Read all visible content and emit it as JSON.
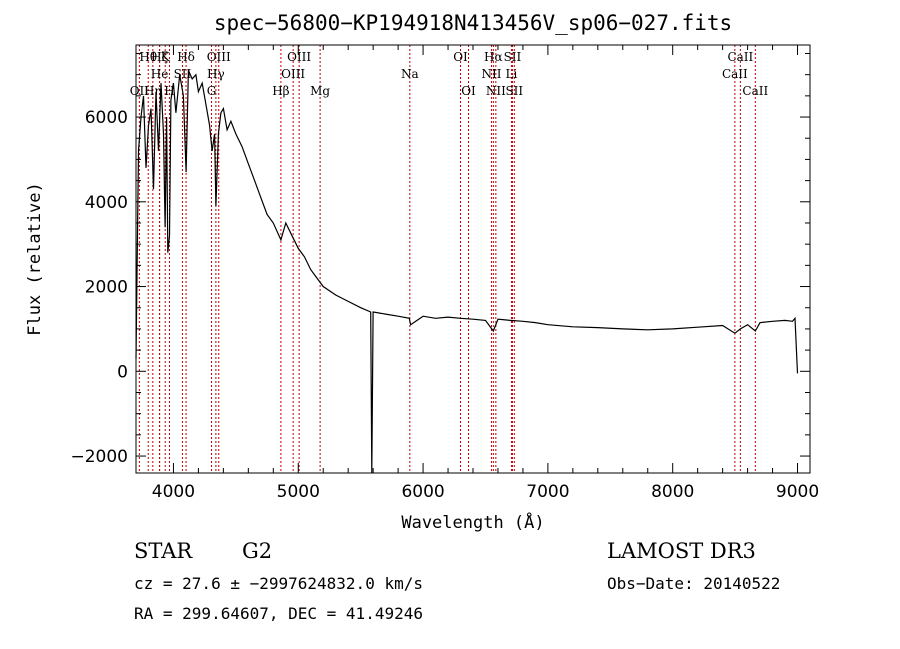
{
  "chart_data": {
    "type": "line",
    "title": "spec−56800−KP194918N413456V_sp06−027.fits",
    "xlabel": "Wavelength (Å)",
    "ylabel": "Flux (relative)",
    "xlim": [
      3700,
      9100
    ],
    "ylim": [
      -2400,
      7700
    ],
    "x_ticks": [
      4000,
      5000,
      6000,
      7000,
      8000,
      9000
    ],
    "y_ticks": [
      -2000,
      0,
      2000,
      4000,
      6000
    ],
    "series": [
      {
        "name": "flux",
        "x": [
          3700,
          3720,
          3740,
          3760,
          3780,
          3800,
          3820,
          3840,
          3860,
          3880,
          3900,
          3920,
          3933,
          3945,
          3955,
          3968,
          3980,
          4000,
          4020,
          4050,
          4080,
          4101,
          4120,
          4150,
          4180,
          4200,
          4230,
          4260,
          4290,
          4310,
          4330,
          4340,
          4360,
          4380,
          4400,
          4430,
          4460,
          4500,
          4550,
          4600,
          4650,
          4700,
          4750,
          4800,
          4861,
          4900,
          4950,
          5000,
          5050,
          5100,
          5150,
          5200,
          5300,
          5400,
          5500,
          5580,
          5589,
          5600,
          5700,
          5800,
          5890,
          5900,
          6000,
          6100,
          6200,
          6300,
          6400,
          6500,
          6563,
          6600,
          6700,
          6800,
          6900,
          7000,
          7200,
          7400,
          7600,
          7800,
          8000,
          8200,
          8400,
          8498,
          8542,
          8600,
          8662,
          8700,
          8800,
          8900,
          8960,
          8980,
          9000
        ],
        "y": [
          300,
          5200,
          6000,
          6500,
          4800,
          5800,
          6200,
          4300,
          6600,
          5200,
          6800,
          5600,
          3400,
          6000,
          2800,
          3200,
          6400,
          6800,
          6100,
          7000,
          6500,
          4700,
          7100,
          6900,
          7000,
          6600,
          6800,
          6300,
          5800,
          5200,
          5600,
          3900,
          5600,
          6100,
          6200,
          5700,
          5900,
          5600,
          5300,
          4900,
          4500,
          4100,
          3700,
          3500,
          3100,
          3500,
          3200,
          2900,
          2700,
          2400,
          2200,
          2000,
          1800,
          1650,
          1500,
          1400,
          -2500,
          1400,
          1350,
          1300,
          1250,
          1100,
          1300,
          1250,
          1280,
          1250,
          1230,
          1200,
          950,
          1230,
          1200,
          1180,
          1150,
          1100,
          1050,
          1030,
          1000,
          980,
          1000,
          1040,
          1080,
          900,
          1000,
          1100,
          950,
          1150,
          1180,
          1200,
          1180,
          1250,
          -50
        ]
      }
    ],
    "lines": [
      {
        "label": "OII",
        "wave": 3727,
        "row": 3
      },
      {
        "label": "Hθ",
        "wave": 3798,
        "row": 1
      },
      {
        "label": "Hη",
        "wave": 3835,
        "row": 3
      },
      {
        "label": "Hζ",
        "wave": 3889,
        "row": 1
      },
      {
        "label": "He",
        "wave": 3889,
        "row": 2
      },
      {
        "label": "K",
        "wave": 3934,
        "row": 1
      },
      {
        "label": "H",
        "wave": 3968,
        "row": 3
      },
      {
        "label": "Hδ",
        "wave": 4101,
        "row": 1
      },
      {
        "label": "SII",
        "wave": 4072,
        "row": 2
      },
      {
        "label": "G",
        "wave": 4305,
        "row": 3
      },
      {
        "label": "OIII",
        "wave": 4363,
        "row": 1
      },
      {
        "label": "Hγ",
        "wave": 4340,
        "row": 2
      },
      {
        "label": "Hβ",
        "wave": 4861,
        "row": 3
      },
      {
        "label": "OIII",
        "wave": 4959,
        "row": 2
      },
      {
        "label": "OIII",
        "wave": 5007,
        "row": 1
      },
      {
        "label": "Mg",
        "wave": 5175,
        "row": 3
      },
      {
        "label": "Na",
        "wave": 5894,
        "row": 2
      },
      {
        "label": "OI",
        "wave": 6300,
        "row": 1
      },
      {
        "label": "OI",
        "wave": 6364,
        "row": 3
      },
      {
        "label": "NII",
        "wave": 6548,
        "row": 2
      },
      {
        "label": "Hα",
        "wave": 6563,
        "row": 1
      },
      {
        "label": "NII",
        "wave": 6583,
        "row": 3
      },
      {
        "label": "SII",
        "wave": 6716,
        "row": 1
      },
      {
        "label": "Li",
        "wave": 6708,
        "row": 2
      },
      {
        "label": "SII",
        "wave": 6731,
        "row": 3
      },
      {
        "label": "CaII",
        "wave": 8498,
        "row": 2
      },
      {
        "label": "CaII",
        "wave": 8542,
        "row": 1
      },
      {
        "label": "CaII",
        "wave": 8662,
        "row": 3
      }
    ]
  },
  "info": {
    "object_type": "STAR",
    "subclass": "G2",
    "survey": "LAMOST DR3",
    "cz": "cz = 27.6 ± −2997624832.0 km/s",
    "obs_date": "Obs−Date: 20140522",
    "radec": "RA = 299.64607, DEC =  41.49246"
  },
  "colors": {
    "spectrum": "#000000",
    "line_marker": "#c00000",
    "background": "#ffffff"
  }
}
